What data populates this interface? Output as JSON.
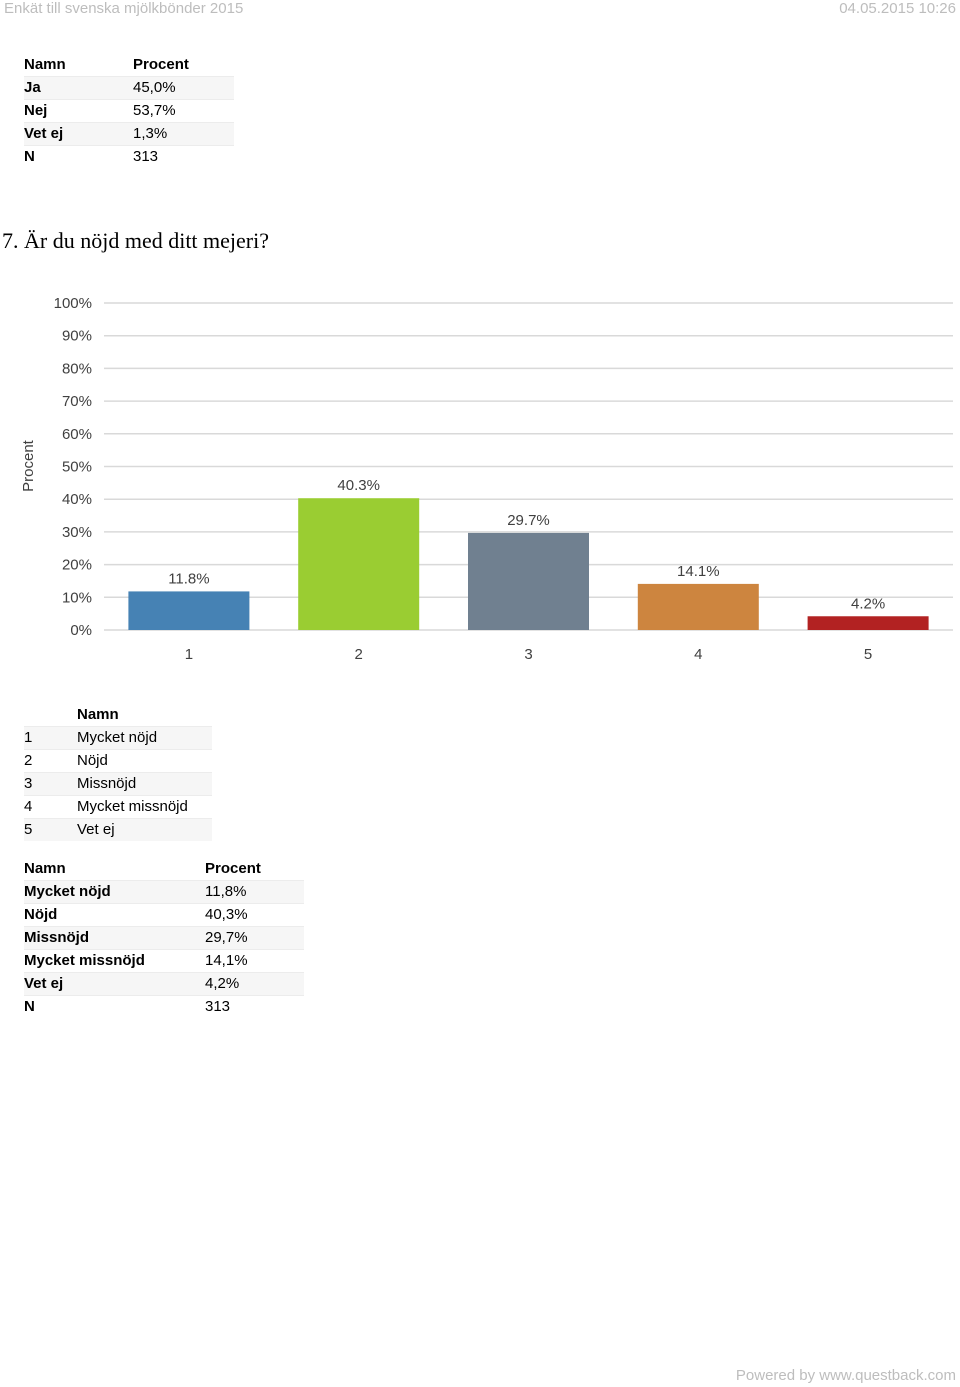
{
  "header": {
    "title": "Enkät till svenska mjölkbönder 2015",
    "datetime": "04.05.2015 10:26"
  },
  "table1": {
    "headers": [
      "Namn",
      "Procent"
    ],
    "rows": [
      {
        "name": "Ja",
        "value": "45,0%"
      },
      {
        "name": "Nej",
        "value": "53,7%"
      },
      {
        "name": "Vet ej",
        "value": "1,3%"
      },
      {
        "name": "N",
        "value": "313"
      }
    ]
  },
  "question": "7. Är du nöjd med ditt mejeri?",
  "chart_data": {
    "type": "bar",
    "title": "7. Är du nöjd med ditt mejeri?",
    "ylabel": "Procent",
    "xlabel": "",
    "categories": [
      "1",
      "2",
      "3",
      "4",
      "5"
    ],
    "values": [
      11.8,
      40.3,
      29.7,
      14.1,
      4.2
    ],
    "data_labels": [
      "11.8%",
      "40.3%",
      "29.7%",
      "14.1%",
      "4.2%"
    ],
    "colors": [
      "#4682b4",
      "#9acd32",
      "#708090",
      "#cd853f",
      "#b22222"
    ],
    "ylim": [
      0,
      100
    ],
    "yticks": [
      "0%",
      "10%",
      "20%",
      "30%",
      "40%",
      "50%",
      "60%",
      "70%",
      "80%",
      "90%",
      "100%"
    ],
    "grid": true
  },
  "legend_table": {
    "header": "Namn",
    "rows": [
      {
        "num": "1",
        "name": "Mycket nöjd"
      },
      {
        "num": "2",
        "name": "Nöjd"
      },
      {
        "num": "3",
        "name": "Missnöjd"
      },
      {
        "num": "4",
        "name": "Mycket missnöjd"
      },
      {
        "num": "5",
        "name": "Vet ej"
      }
    ]
  },
  "table2": {
    "headers": [
      "Namn",
      "Procent"
    ],
    "rows": [
      {
        "name": "Mycket nöjd",
        "value": "11,8%"
      },
      {
        "name": "Nöjd",
        "value": "40,3%"
      },
      {
        "name": "Missnöjd",
        "value": "29,7%"
      },
      {
        "name": "Mycket missnöjd",
        "value": "14,1%"
      },
      {
        "name": "Vet ej",
        "value": "4,2%"
      },
      {
        "name": "N",
        "value": "313"
      }
    ]
  },
  "footer": "Powered by www.questback.com"
}
